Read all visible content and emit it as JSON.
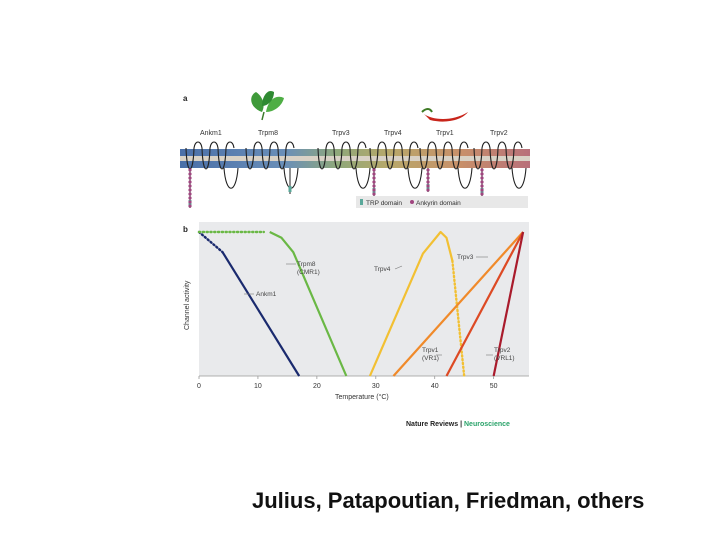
{
  "panel_a": {
    "label": "a",
    "channels": [
      "Ankm1",
      "Trpm8",
      "Trpv3",
      "Trpv4",
      "Trpv1",
      "Trpv2"
    ],
    "legend": {
      "trp_domain": "TRP domain",
      "ankyrin_domain": "Ankyrin domain"
    },
    "colors": {
      "trp": "#59a89a",
      "ankyrin": "#a0457f"
    }
  },
  "panel_b": {
    "label": "b"
  },
  "publisher": {
    "journal": "Nature Reviews",
    "separator": " | ",
    "section": "Neuroscience"
  },
  "credit": "Julius, Patapoutian, Friedman, others",
  "chart_data": {
    "type": "line",
    "xlabel": "Temperature (°C)",
    "ylabel": "Channel activity",
    "xlim": [
      0,
      56
    ],
    "ylim": [
      0,
      1
    ],
    "xticks": [
      0,
      10,
      20,
      30,
      40,
      50
    ],
    "series": [
      {
        "name": "Ankm1",
        "label": "Ankm1",
        "color": "#1a2a6e",
        "solid": [
          [
            4,
            0.86
          ],
          [
            17,
            0.0
          ]
        ],
        "dotted": [
          [
            0,
            1.0
          ],
          [
            4,
            0.86
          ]
        ]
      },
      {
        "name": "Trpm8 (CMR1)",
        "label": "Trpm8\n(CMR1)",
        "color": "#6ab845",
        "solid": [
          [
            12,
            1.0
          ],
          [
            14,
            0.96
          ],
          [
            16,
            0.86
          ],
          [
            25,
            0.0
          ]
        ],
        "dotted": [
          [
            0,
            1.0
          ],
          [
            11,
            1.0
          ]
        ]
      },
      {
        "name": "Trpv4",
        "label": "Trpv4",
        "color": "#f2c033",
        "solid": [
          [
            29,
            0.0
          ],
          [
            38,
            0.85
          ],
          [
            41,
            1.0
          ],
          [
            42,
            0.96
          ],
          [
            43,
            0.8
          ]
        ],
        "dotted": [
          [
            43,
            0.8
          ],
          [
            45,
            0.0
          ]
        ]
      },
      {
        "name": "Trpv3",
        "label": "Trpv3",
        "color": "#f08a2a",
        "solid": [
          [
            33,
            0.0
          ],
          [
            55,
            1.0
          ]
        ],
        "dotted": []
      },
      {
        "name": "Trpv1 (VR1)",
        "label": "Trpv1\n(VR1)",
        "color": "#dd4a24",
        "solid": [
          [
            42,
            0.0
          ],
          [
            55,
            1.0
          ]
        ],
        "dotted": []
      },
      {
        "name": "Trpv2 (VRL1)",
        "label": "Trpv2\n(VRL1)",
        "color": "#a91b2c",
        "solid": [
          [
            50,
            0.0
          ],
          [
            55,
            1.0
          ]
        ],
        "dotted": []
      }
    ]
  }
}
